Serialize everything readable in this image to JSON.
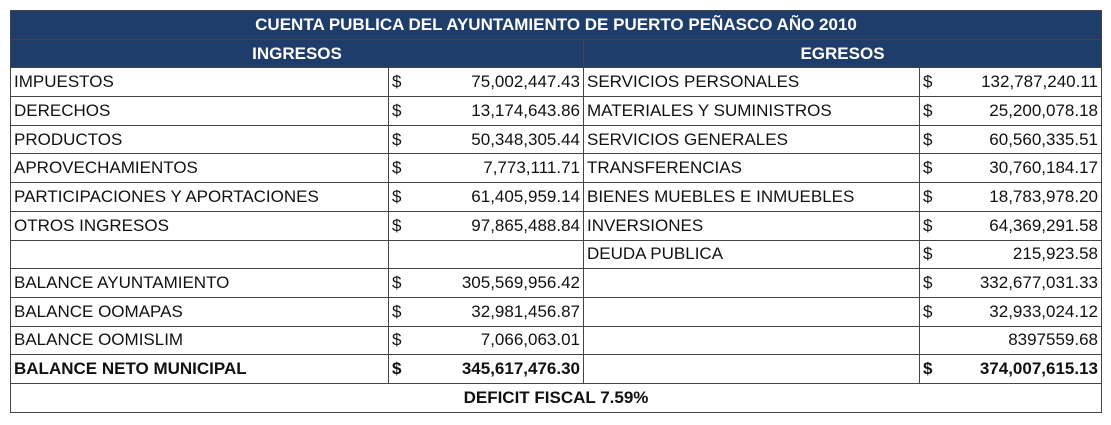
{
  "title": "CUENTA PUBLICA DEL AYUNTAMIENTO DE PUERTO PEÑASCO AÑO 2010",
  "headers": {
    "ingresos": "INGRESOS",
    "egresos": "EGRESOS"
  },
  "rows": [
    {
      "bold": false,
      "cells": [
        "IMPUESTOS",
        {
          "currency": "$",
          "amount": "75,002,447.43"
        },
        "SERVICIOS PERSONALES",
        {
          "currency": "$",
          "amount": "132,787,240.11"
        }
      ]
    },
    {
      "bold": false,
      "cells": [
        "DERECHOS",
        {
          "currency": "$",
          "amount": "13,174,643.86"
        },
        "MATERIALES Y SUMINISTROS",
        {
          "currency": "$",
          "amount": "25,200,078.18"
        }
      ]
    },
    {
      "bold": false,
      "cells": [
        "PRODUCTOS",
        {
          "currency": "$",
          "amount": "50,348,305.44"
        },
        "SERVICIOS GENERALES",
        {
          "currency": "$",
          "amount": "60,560,335.51"
        }
      ]
    },
    {
      "bold": false,
      "cells": [
        "APROVECHAMIENTOS",
        {
          "currency": "$",
          "amount": "7,773,111.71"
        },
        "TRANSFERENCIAS",
        {
          "currency": "$",
          "amount": "30,760,184.17"
        }
      ]
    },
    {
      "bold": false,
      "cells": [
        "PARTICIPACIONES Y APORTACIONES",
        {
          "currency": "$",
          "amount": "61,405,959.14"
        },
        "BIENES MUEBLES E INMUEBLES",
        {
          "currency": "$",
          "amount": "18,783,978.20"
        }
      ]
    },
    {
      "bold": false,
      "cells": [
        "OTROS INGRESOS",
        {
          "currency": "$",
          "amount": "97,865,488.84"
        },
        "INVERSIONES",
        {
          "currency": "$",
          "amount": "64,369,291.58"
        }
      ]
    },
    {
      "bold": false,
      "cells": [
        null,
        null,
        "DEUDA PUBLICA",
        {
          "currency": "$",
          "amount": "215,923.58"
        }
      ]
    },
    {
      "bold": false,
      "cells": [
        "BALANCE AYUNTAMIENTO",
        {
          "currency": "$",
          "amount": "305,569,956.42"
        },
        null,
        {
          "currency": "$",
          "amount": "332,677,031.33"
        }
      ]
    },
    {
      "bold": false,
      "cells": [
        "BALANCE OOMAPAS",
        {
          "currency": "$",
          "amount": "32,981,456.87"
        },
        null,
        {
          "currency": "$",
          "amount": "32,933,024.12"
        }
      ]
    },
    {
      "bold": false,
      "cells": [
        "BALANCE OOMISLIM",
        {
          "currency": "$",
          "amount": "7,066,063.01"
        },
        null,
        {
          "amount": "8397559.68"
        }
      ]
    },
    {
      "bold": true,
      "cells": [
        "BALANCE NETO MUNICIPAL",
        {
          "currency": "$",
          "amount": "345,617,476.30"
        },
        null,
        {
          "currency": "$",
          "amount": "374,007,615.13"
        }
      ]
    }
  ],
  "footer": "DEFICIT FISCAL 7.59%"
}
